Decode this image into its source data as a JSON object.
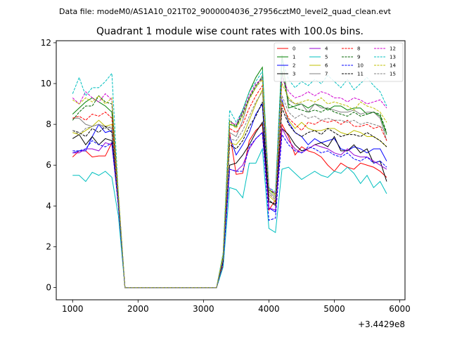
{
  "suptitle": "Data file: modeM0/AS1A10_021T02_9000004036_27956cztM0_level2_quad_clean.evt",
  "chart_data": {
    "type": "line",
    "title": "Quadrant 1 module wise count rates with 100.0s bins.",
    "xlabel": "",
    "ylabel": "",
    "x_offset_label": "+3.4429e8",
    "xlim": [
      750,
      6080
    ],
    "ylim": [
      -0.6,
      12.1
    ],
    "xticks": [
      1000,
      2000,
      3000,
      4000,
      5000,
      6000
    ],
    "yticks": [
      0,
      2,
      4,
      6,
      8,
      10,
      12
    ],
    "grid": false,
    "legend_position": "top-right",
    "x": [
      1000,
      1100,
      1200,
      1300,
      1400,
      1500,
      1600,
      1700,
      1800,
      1900,
      2000,
      2100,
      2200,
      2300,
      2400,
      2500,
      2600,
      2700,
      2800,
      2900,
      3000,
      3100,
      3200,
      3300,
      3400,
      3500,
      3600,
      3700,
      3800,
      3900,
      4000,
      4100,
      4200,
      4300,
      4400,
      4500,
      4600,
      4700,
      4800,
      4900,
      5000,
      5100,
      5200,
      5300,
      5400,
      5500,
      5600,
      5700,
      5800
    ],
    "series": [
      {
        "name": "0",
        "color": "#ff0000",
        "dash": "solid",
        "values": [
          6.4,
          6.7,
          6.7,
          6.4,
          6.45,
          6.45,
          7.1,
          4.0,
          0,
          0,
          0,
          0,
          0,
          0,
          0,
          0,
          0,
          0,
          0,
          0,
          0,
          0,
          0,
          1.1,
          7.6,
          5.55,
          5.6,
          7.2,
          7.7,
          8.0,
          3.8,
          4.3,
          8.0,
          7.4,
          6.5,
          6.9,
          6.7,
          6.6,
          6.4,
          6.0,
          5.7,
          6.1,
          5.9,
          5.8,
          6.1,
          6.0,
          5.9,
          5.7,
          5.4
        ]
      },
      {
        "name": "1",
        "color": "#008000",
        "dash": "solid",
        "values": [
          8.5,
          8.8,
          9.1,
          9.3,
          9.1,
          8.9,
          8.6,
          4.2,
          0,
          0,
          0,
          0,
          0,
          0,
          0,
          0,
          0,
          0,
          0,
          0,
          0,
          0,
          0,
          1.6,
          8.0,
          7.9,
          8.7,
          9.6,
          10.3,
          10.8,
          4.8,
          4.6,
          11.4,
          8.8,
          8.9,
          9.0,
          8.8,
          9.0,
          8.9,
          8.7,
          8.9,
          8.9,
          8.7,
          8.8,
          8.8,
          8.5,
          8.6,
          8.4,
          7.5
        ]
      },
      {
        "name": "2",
        "color": "#0000ff",
        "dash": "solid",
        "values": [
          6.6,
          6.7,
          6.7,
          7.4,
          8.0,
          7.6,
          7.7,
          4.0,
          0,
          0,
          0,
          0,
          0,
          0,
          0,
          0,
          0,
          0,
          0,
          0,
          0,
          0,
          0,
          1.3,
          7.4,
          6.5,
          7.0,
          7.6,
          8.5,
          9.0,
          3.9,
          3.7,
          9.2,
          8.1,
          7.6,
          7.4,
          7.0,
          7.3,
          7.1,
          7.2,
          7.3,
          6.8,
          6.7,
          6.9,
          6.8,
          6.6,
          6.8,
          6.8,
          6.2
        ]
      },
      {
        "name": "3",
        "color": "#000000",
        "dash": "solid",
        "values": [
          7.3,
          7.5,
          7.0,
          7.4,
          7.0,
          7.3,
          7.2,
          4.2,
          0,
          0,
          0,
          0,
          0,
          0,
          0,
          0,
          0,
          0,
          0,
          0,
          0,
          0,
          0,
          1.4,
          6.0,
          6.1,
          6.5,
          7.0,
          7.6,
          8.1,
          4.2,
          4.1,
          7.8,
          7.5,
          7.0,
          6.7,
          6.8,
          7.0,
          7.1,
          6.9,
          7.4,
          6.7,
          6.7,
          7.0,
          6.6,
          6.8,
          6.1,
          6.2,
          5.2
        ]
      },
      {
        "name": "4",
        "color": "#9400d3",
        "dash": "solid",
        "values": [
          6.6,
          6.6,
          6.8,
          6.8,
          6.7,
          7.1,
          7.0,
          4.1,
          0,
          0,
          0,
          0,
          0,
          0,
          0,
          0,
          0,
          0,
          0,
          0,
          0,
          0,
          0,
          1.3,
          5.8,
          5.7,
          6.0,
          6.8,
          7.3,
          7.6,
          3.9,
          3.8,
          7.8,
          7.2,
          6.8,
          6.6,
          6.8,
          7.0,
          6.9,
          6.8,
          6.6,
          6.5,
          6.8,
          6.5,
          6.4,
          6.4,
          6.2,
          6.0,
          5.8
        ]
      },
      {
        "name": "5",
        "color": "#00bfbf",
        "dash": "solid",
        "values": [
          5.5,
          5.5,
          5.2,
          5.65,
          5.5,
          5.7,
          5.4,
          3.5,
          0,
          0,
          0,
          0,
          0,
          0,
          0,
          0,
          0,
          0,
          0,
          0,
          0,
          0,
          0,
          1.0,
          4.9,
          4.8,
          4.4,
          6.1,
          6.1,
          6.8,
          2.9,
          2.7,
          5.8,
          5.9,
          5.6,
          5.3,
          5.5,
          5.7,
          5.5,
          5.4,
          5.7,
          5.6,
          5.9,
          5.6,
          5.1,
          5.5,
          4.9,
          5.2,
          4.6
        ]
      },
      {
        "name": "6",
        "color": "#bfbf00",
        "dash": "solid",
        "values": [
          7.6,
          7.5,
          7.7,
          7.9,
          8.2,
          7.9,
          8.0,
          4.4,
          0,
          0,
          0,
          0,
          0,
          0,
          0,
          0,
          0,
          0,
          0,
          0,
          0,
          0,
          0,
          1.4,
          7.1,
          7.0,
          7.4,
          8.2,
          9.0,
          9.7,
          4.5,
          4.2,
          9.1,
          8.2,
          7.8,
          8.1,
          7.8,
          7.7,
          7.7,
          7.8,
          7.8,
          7.6,
          7.5,
          7.7,
          7.6,
          7.4,
          7.4,
          7.2,
          6.9
        ]
      },
      {
        "name": "7",
        "color": "#808080",
        "dash": "solid",
        "values": [
          8.3,
          8.3,
          8.0,
          7.9,
          8.0,
          7.9,
          7.8,
          4.3,
          0,
          0,
          0,
          0,
          0,
          0,
          0,
          0,
          0,
          0,
          0,
          0,
          0,
          0,
          0,
          1.5,
          7.6,
          7.4,
          8.2,
          9.3,
          9.8,
          10.4,
          4.7,
          4.4,
          10.5,
          9.2,
          9.0,
          9.0,
          8.6,
          9.0,
          8.8,
          8.8,
          8.7,
          8.6,
          8.6,
          8.7,
          8.5,
          8.6,
          8.6,
          8.3,
          7.2
        ]
      },
      {
        "name": "8",
        "color": "#ff0000",
        "dash": "dashed",
        "values": [
          8.3,
          8.4,
          8.2,
          8.5,
          8.4,
          8.6,
          8.3,
          4.3,
          0,
          0,
          0,
          0,
          0,
          0,
          0,
          0,
          0,
          0,
          0,
          0,
          0,
          0,
          0,
          1.4,
          7.8,
          7.6,
          8.0,
          8.8,
          9.4,
          9.9,
          4.6,
          4.3,
          9.0,
          8.3,
          8.0,
          7.7,
          8.1,
          8.0,
          8.2,
          8.1,
          8.2,
          8.0,
          8.2,
          7.9,
          7.9,
          8.0,
          7.8,
          7.9,
          7.2
        ]
      },
      {
        "name": "9",
        "color": "#006400",
        "dash": "dashed",
        "values": [
          8.2,
          8.6,
          8.9,
          8.9,
          9.4,
          9.1,
          9.0,
          4.5,
          0,
          0,
          0,
          0,
          0,
          0,
          0,
          0,
          0,
          0,
          0,
          0,
          0,
          0,
          0,
          1.5,
          8.2,
          7.9,
          8.5,
          9.3,
          9.9,
          10.3,
          4.8,
          4.5,
          10.6,
          9.0,
          8.8,
          8.7,
          8.6,
          8.7,
          8.6,
          8.8,
          8.6,
          8.5,
          8.4,
          8.6,
          8.4,
          8.5,
          8.6,
          8.5,
          7.6
        ]
      },
      {
        "name": "10",
        "color": "#0000ff",
        "dash": "dashed",
        "values": [
          6.7,
          6.7,
          6.8,
          7.2,
          7.0,
          6.9,
          7.1,
          4.0,
          0,
          0,
          0,
          0,
          0,
          0,
          0,
          0,
          0,
          0,
          0,
          0,
          0,
          0,
          0,
          1.2,
          5.8,
          5.7,
          5.7,
          6.9,
          7.3,
          7.6,
          3.3,
          3.4,
          7.5,
          7.0,
          6.7,
          6.6,
          6.9,
          6.8,
          6.6,
          6.7,
          6.5,
          6.4,
          6.6,
          6.3,
          6.2,
          6.4,
          6.1,
          6.2,
          5.9
        ]
      },
      {
        "name": "11",
        "color": "#000000",
        "dash": "dashed",
        "values": [
          7.7,
          7.6,
          7.4,
          7.8,
          7.6,
          7.9,
          7.6,
          4.2,
          0,
          0,
          0,
          0,
          0,
          0,
          0,
          0,
          0,
          0,
          0,
          0,
          0,
          0,
          0,
          1.3,
          7.0,
          6.8,
          7.2,
          7.9,
          8.4,
          9.1,
          4.3,
          4.0,
          8.8,
          8.0,
          7.6,
          7.4,
          7.6,
          7.7,
          7.5,
          7.8,
          7.6,
          7.4,
          7.5,
          7.5,
          7.4,
          7.6,
          7.4,
          7.2,
          6.9
        ]
      },
      {
        "name": "12",
        "color": "#d000d0",
        "dash": "dashed",
        "values": [
          9.3,
          9.0,
          9.6,
          9.3,
          9.1,
          9.5,
          9.2,
          4.6,
          0,
          0,
          0,
          0,
          0,
          0,
          0,
          0,
          0,
          0,
          0,
          0,
          0,
          0,
          0,
          1.6,
          8.1,
          8.0,
          8.6,
          9.4,
          10.0,
          10.2,
          4.9,
          4.6,
          10.3,
          9.6,
          9.3,
          9.4,
          9.6,
          9.4,
          9.6,
          9.5,
          9.3,
          9.3,
          9.1,
          9.3,
          9.2,
          9.0,
          9.1,
          9.2,
          8.8
        ]
      },
      {
        "name": "13",
        "color": "#00bfbf",
        "dash": "dashed",
        "values": [
          9.5,
          10.3,
          9.4,
          9.8,
          9.8,
          10.1,
          10.5,
          4.6,
          0,
          0,
          0,
          0,
          0,
          0,
          0,
          0,
          0,
          0,
          0,
          0,
          0,
          0,
          0,
          1.7,
          8.7,
          8.1,
          8.7,
          9.6,
          10.1,
          10.6,
          4.9,
          4.7,
          11.2,
          10.2,
          9.8,
          10.1,
          9.9,
          10.2,
          10.0,
          10.4,
          10.1,
          9.8,
          10.2,
          9.7,
          10.0,
          10.3,
          9.9,
          9.6,
          8.9
        ]
      },
      {
        "name": "14",
        "color": "#bfbf00",
        "dash": "dashed",
        "values": [
          9.2,
          9.0,
          9.3,
          9.1,
          9.4,
          9.0,
          9.3,
          4.6,
          0,
          0,
          0,
          0,
          0,
          0,
          0,
          0,
          0,
          0,
          0,
          0,
          0,
          0,
          0,
          1.6,
          8.1,
          7.8,
          8.4,
          9.2,
          9.8,
          10.2,
          4.8,
          4.5,
          10.0,
          9.3,
          9.0,
          9.1,
          9.2,
          9.1,
          9.3,
          9.0,
          9.1,
          9.0,
          8.9,
          8.7,
          9.1,
          8.9,
          8.8,
          8.6,
          8.1
        ]
      },
      {
        "name": "15",
        "color": "#808080",
        "dash": "dashed",
        "values": [
          7.7,
          7.5,
          7.8,
          7.9,
          8.0,
          7.8,
          7.9,
          4.3,
          0,
          0,
          0,
          0,
          0,
          0,
          0,
          0,
          0,
          0,
          0,
          0,
          0,
          0,
          0,
          1.4,
          7.3,
          7.2,
          7.7,
          8.4,
          9.1,
          9.6,
          4.6,
          4.3,
          9.4,
          8.6,
          8.3,
          8.5,
          8.3,
          8.4,
          8.2,
          8.3,
          8.2,
          8.2,
          8.1,
          8.2,
          8.0,
          8.1,
          8.0,
          7.9,
          7.6
        ]
      }
    ]
  }
}
